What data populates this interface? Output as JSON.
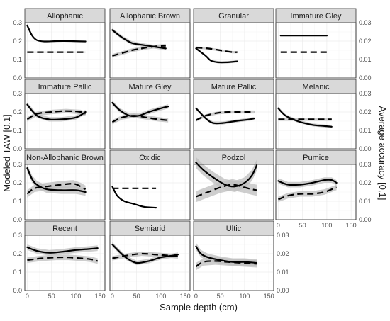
{
  "chart_data": {
    "type": "line",
    "xlabel": "Sample depth (cm)",
    "ylabel_left": "Modeled TAW [0,1]",
    "ylabel_right": "Average accuracy [0,1]",
    "xlim": [
      -5,
      160
    ],
    "xticks": [
      0,
      50,
      100,
      150
    ],
    "ylim_left": [
      0.0,
      0.3
    ],
    "yticks_left": [
      "0.0",
      "0.1",
      "0.2",
      "0.3"
    ],
    "yticks_right": [
      "0.00",
      "0.01",
      "0.02",
      "0.03"
    ],
    "grid": true,
    "panels": [
      {
        "title": "Allophanic",
        "taw": [
          [
            0,
            0.285
          ],
          [
            10,
            0.23
          ],
          [
            20,
            0.205
          ],
          [
            35,
            0.198
          ],
          [
            60,
            0.2
          ],
          [
            90,
            0.2
          ],
          [
            120,
            0.198
          ]
        ],
        "acc": [
          [
            0,
            0.14
          ],
          [
            40,
            0.14
          ],
          [
            80,
            0.14
          ],
          [
            120,
            0.14
          ]
        ],
        "ribbon": 0.003
      },
      {
        "title": "Allophanic Brown",
        "taw": [
          [
            0,
            0.26
          ],
          [
            20,
            0.22
          ],
          [
            40,
            0.19
          ],
          [
            60,
            0.18
          ],
          [
            85,
            0.17
          ],
          [
            110,
            0.16
          ]
        ],
        "acc": [
          [
            0,
            0.12
          ],
          [
            20,
            0.135
          ],
          [
            40,
            0.15
          ],
          [
            60,
            0.16
          ],
          [
            85,
            0.17
          ],
          [
            110,
            0.175
          ]
        ],
        "ribbon": 0.01
      },
      {
        "title": "Granular",
        "taw": [
          [
            0,
            0.16
          ],
          [
            20,
            0.12
          ],
          [
            30,
            0.095
          ],
          [
            45,
            0.085
          ],
          [
            65,
            0.085
          ],
          [
            85,
            0.09
          ]
        ],
        "acc": [
          [
            0,
            0.165
          ],
          [
            25,
            0.16
          ],
          [
            50,
            0.15
          ],
          [
            75,
            0.14
          ],
          [
            85,
            0.14
          ]
        ],
        "ribbon": 0.006
      },
      {
        "title": "Immature Gley",
        "taw": [
          [
            5,
            0.23
          ],
          [
            100,
            0.23
          ]
        ],
        "acc": [
          [
            5,
            0.14
          ],
          [
            100,
            0.14
          ]
        ],
        "ribbon": 0
      },
      {
        "title": "Immature Pallic",
        "taw": [
          [
            0,
            0.24
          ],
          [
            20,
            0.18
          ],
          [
            45,
            0.16
          ],
          [
            70,
            0.16
          ],
          [
            100,
            0.17
          ],
          [
            120,
            0.2
          ]
        ],
        "acc": [
          [
            0,
            0.16
          ],
          [
            20,
            0.19
          ],
          [
            50,
            0.2
          ],
          [
            80,
            0.205
          ],
          [
            110,
            0.2
          ],
          [
            120,
            0.19
          ]
        ],
        "ribbon": 0.012
      },
      {
        "title": "Mature Gley",
        "taw": [
          [
            0,
            0.25
          ],
          [
            15,
            0.21
          ],
          [
            35,
            0.18
          ],
          [
            55,
            0.18
          ],
          [
            75,
            0.2
          ],
          [
            100,
            0.22
          ],
          [
            115,
            0.23
          ]
        ],
        "acc": [
          [
            0,
            0.145
          ],
          [
            20,
            0.17
          ],
          [
            45,
            0.18
          ],
          [
            70,
            0.17
          ],
          [
            95,
            0.16
          ],
          [
            115,
            0.155
          ]
        ],
        "ribbon": 0.012
      },
      {
        "title": "Mature Pallic",
        "taw": [
          [
            0,
            0.22
          ],
          [
            20,
            0.165
          ],
          [
            35,
            0.14
          ],
          [
            55,
            0.14
          ],
          [
            80,
            0.15
          ],
          [
            110,
            0.16
          ],
          [
            120,
            0.165
          ]
        ],
        "acc": [
          [
            0,
            0.155
          ],
          [
            20,
            0.18
          ],
          [
            45,
            0.195
          ],
          [
            70,
            0.2
          ],
          [
            100,
            0.2
          ],
          [
            120,
            0.2
          ]
        ],
        "ribbon": 0.008
      },
      {
        "title": "Melanic",
        "taw": [
          [
            0,
            0.22
          ],
          [
            15,
            0.18
          ],
          [
            40,
            0.15
          ],
          [
            70,
            0.13
          ],
          [
            90,
            0.125
          ],
          [
            110,
            0.12
          ]
        ],
        "acc": [
          [
            0,
            0.16
          ],
          [
            50,
            0.16
          ],
          [
            110,
            0.16
          ]
        ],
        "ribbon": 0.008
      },
      {
        "title": "Non-Allophanic Brown",
        "taw": [
          [
            0,
            0.28
          ],
          [
            10,
            0.22
          ],
          [
            20,
            0.19
          ],
          [
            40,
            0.165
          ],
          [
            70,
            0.16
          ],
          [
            100,
            0.16
          ],
          [
            120,
            0.15
          ]
        ],
        "acc": [
          [
            0,
            0.14
          ],
          [
            15,
            0.17
          ],
          [
            40,
            0.18
          ],
          [
            70,
            0.19
          ],
          [
            95,
            0.195
          ],
          [
            110,
            0.18
          ],
          [
            120,
            0.165
          ]
        ],
        "ribbon": 0.02
      },
      {
        "title": "Oxidic",
        "taw": [
          [
            0,
            0.18
          ],
          [
            10,
            0.13
          ],
          [
            25,
            0.1
          ],
          [
            45,
            0.085
          ],
          [
            65,
            0.07
          ],
          [
            90,
            0.065
          ]
        ],
        "acc": [
          [
            0,
            0.17
          ],
          [
            45,
            0.17
          ],
          [
            90,
            0.17
          ]
        ],
        "ribbon": 0
      },
      {
        "title": "Podzol",
        "taw": [
          [
            0,
            0.31
          ],
          [
            15,
            0.27
          ],
          [
            35,
            0.23
          ],
          [
            60,
            0.19
          ],
          [
            80,
            0.18
          ],
          [
            100,
            0.2
          ],
          [
            115,
            0.24
          ],
          [
            125,
            0.295
          ]
        ],
        "acc": [
          [
            0,
            0.125
          ],
          [
            25,
            0.15
          ],
          [
            50,
            0.175
          ],
          [
            75,
            0.19
          ],
          [
            100,
            0.175
          ],
          [
            115,
            0.165
          ],
          [
            125,
            0.16
          ]
        ],
        "ribbon": 0.03
      },
      {
        "title": "Pumice",
        "taw": [
          [
            0,
            0.21
          ],
          [
            20,
            0.19
          ],
          [
            45,
            0.19
          ],
          [
            70,
            0.2
          ],
          [
            95,
            0.215
          ],
          [
            110,
            0.215
          ],
          [
            120,
            0.2
          ]
        ],
        "acc": [
          [
            0,
            0.11
          ],
          [
            20,
            0.13
          ],
          [
            45,
            0.14
          ],
          [
            70,
            0.14
          ],
          [
            95,
            0.15
          ],
          [
            110,
            0.165
          ],
          [
            120,
            0.175
          ]
        ],
        "ribbon": 0.015
      },
      {
        "title": "Recent",
        "taw": [
          [
            0,
            0.235
          ],
          [
            20,
            0.215
          ],
          [
            45,
            0.205
          ],
          [
            70,
            0.21
          ],
          [
            100,
            0.22
          ],
          [
            125,
            0.225
          ],
          [
            145,
            0.23
          ]
        ],
        "acc": [
          [
            0,
            0.165
          ],
          [
            30,
            0.175
          ],
          [
            60,
            0.18
          ],
          [
            85,
            0.18
          ],
          [
            110,
            0.175
          ],
          [
            130,
            0.17
          ],
          [
            145,
            0.16
          ]
        ],
        "ribbon": 0.015
      },
      {
        "title": "Semiarid",
        "taw": [
          [
            0,
            0.25
          ],
          [
            15,
            0.21
          ],
          [
            30,
            0.175
          ],
          [
            50,
            0.15
          ],
          [
            75,
            0.16
          ],
          [
            100,
            0.18
          ],
          [
            125,
            0.19
          ],
          [
            135,
            0.195
          ]
        ],
        "acc": [
          [
            0,
            0.175
          ],
          [
            30,
            0.19
          ],
          [
            60,
            0.2
          ],
          [
            90,
            0.195
          ],
          [
            115,
            0.19
          ],
          [
            135,
            0.185
          ]
        ],
        "ribbon": 0.012
      },
      {
        "title": "Ultic",
        "taw": [
          [
            0,
            0.24
          ],
          [
            10,
            0.2
          ],
          [
            25,
            0.18
          ],
          [
            50,
            0.165
          ],
          [
            75,
            0.155
          ],
          [
            100,
            0.155
          ],
          [
            125,
            0.15
          ]
        ],
        "acc": [
          [
            0,
            0.13
          ],
          [
            15,
            0.155
          ],
          [
            40,
            0.16
          ],
          [
            65,
            0.155
          ],
          [
            95,
            0.15
          ],
          [
            125,
            0.145
          ]
        ],
        "ribbon": 0.02
      }
    ]
  }
}
